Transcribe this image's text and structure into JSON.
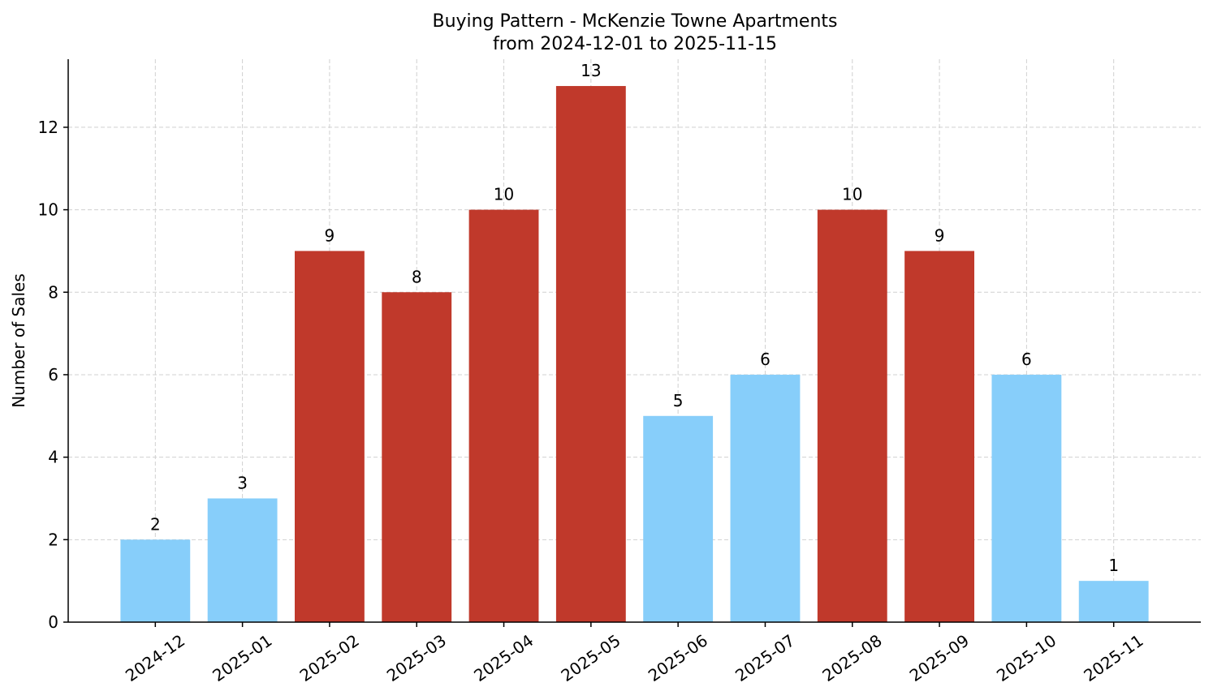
{
  "chart_data": {
    "type": "bar",
    "title": "Buying Pattern - McKenzie Towne Apartments",
    "subtitle": "from 2024-12-01 to 2025-11-15",
    "y_label": "Number of Sales",
    "categories": [
      "2024-12",
      "2025-01",
      "2025-02",
      "2025-03",
      "2025-04",
      "2025-05",
      "2025-06",
      "2025-07",
      "2025-08",
      "2025-09",
      "2025-10",
      "2025-11"
    ],
    "values": [
      2,
      3,
      9,
      8,
      10,
      13,
      5,
      6,
      10,
      9,
      6,
      1
    ],
    "colors": [
      "#87cefa",
      "#87cefa",
      "#c0392b",
      "#c0392b",
      "#c0392b",
      "#c0392b",
      "#87cefa",
      "#87cefa",
      "#c0392b",
      "#c0392b",
      "#87cefa",
      "#87cefa"
    ],
    "ylim": [
      0,
      13.65
    ],
    "yticks": [
      0,
      2,
      4,
      6,
      8,
      10,
      12
    ],
    "grid": true
  }
}
